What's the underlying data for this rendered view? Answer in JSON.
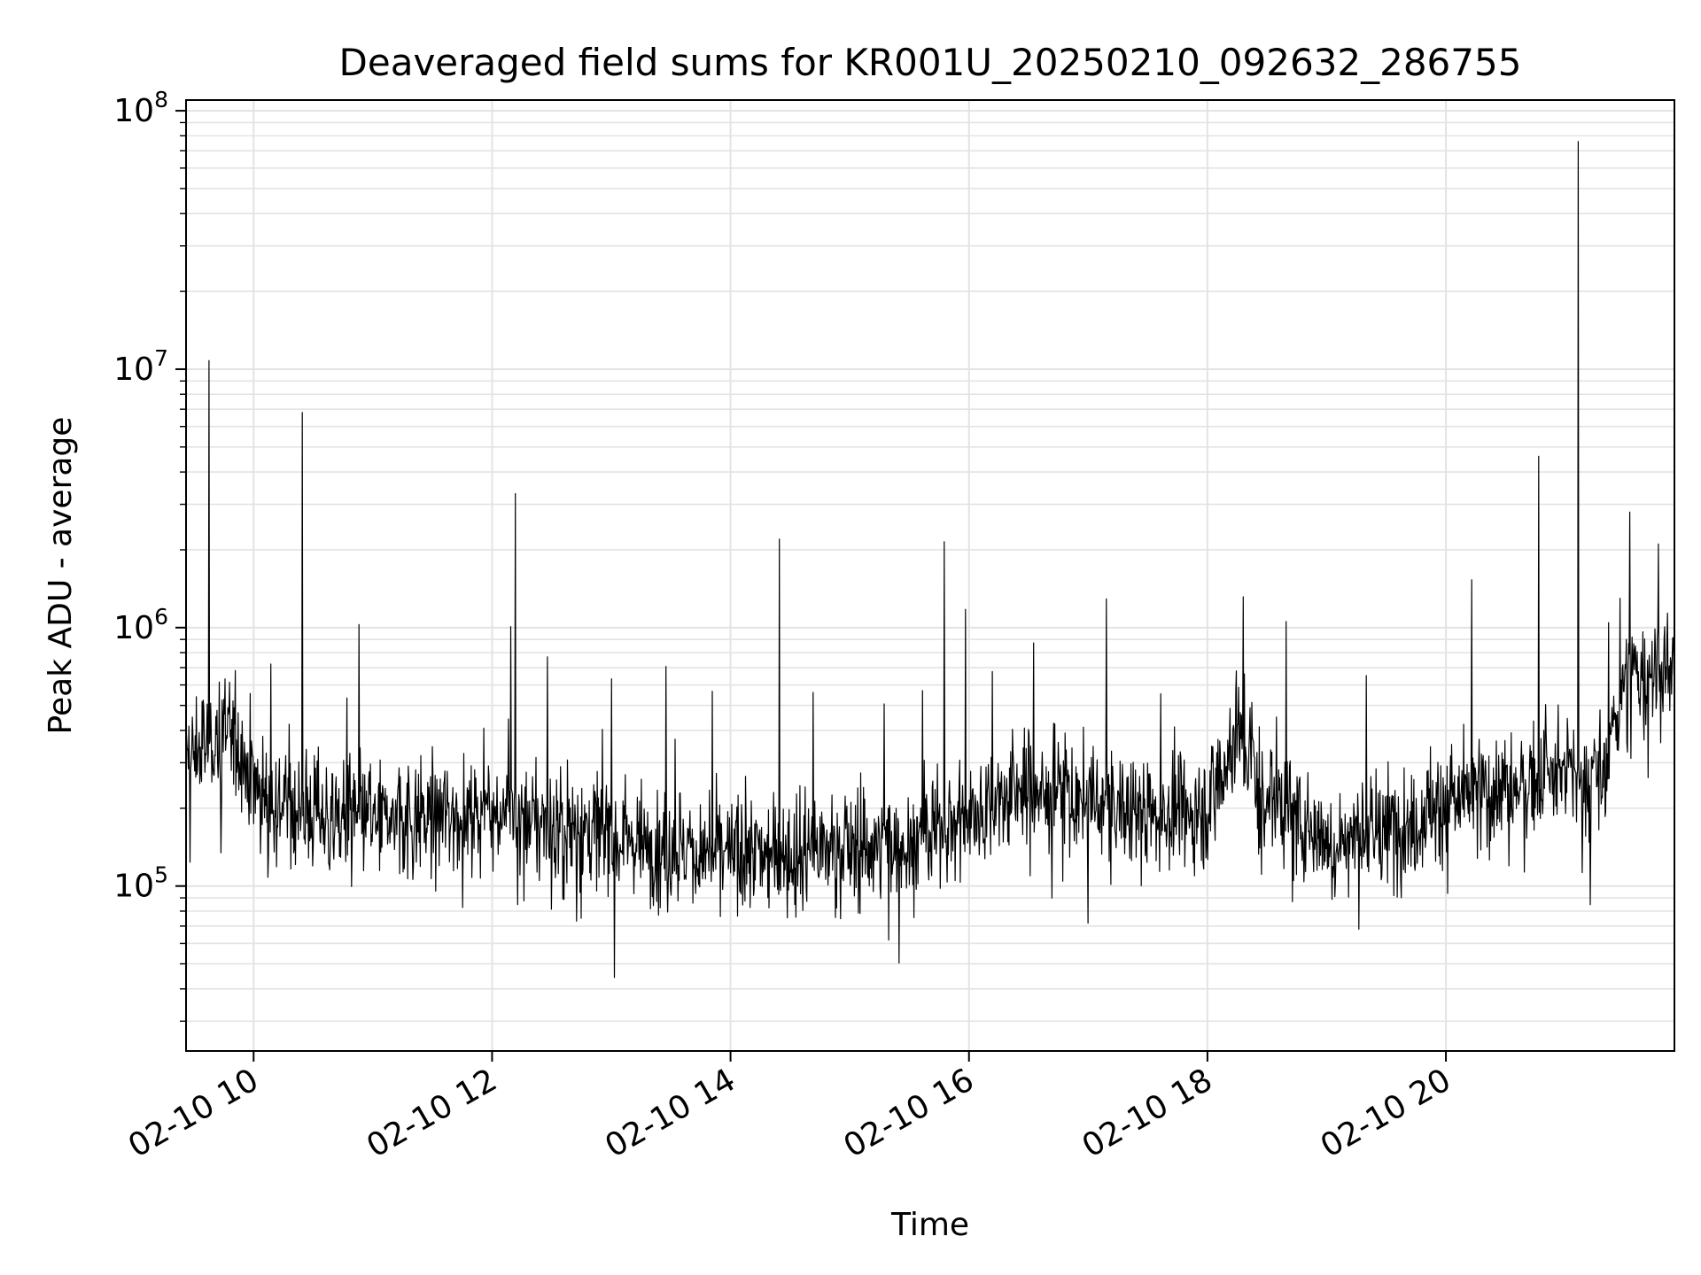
{
  "chart_data": {
    "type": "line",
    "title": "Deaveraged field sums for KR001U_20250210_092632_286755",
    "xlabel": "Time",
    "ylabel": "Peak ADU - average",
    "yscale": "log",
    "ylim": [
      23000,
      110000000
    ],
    "xlim": [
      "2025-02-10 09:26",
      "2025-02-10 21:55"
    ],
    "x_ticks": [
      {
        "value": "2025-02-10 10:00",
        "label": "02-10 10"
      },
      {
        "value": "2025-02-10 12:00",
        "label": "02-10 12"
      },
      {
        "value": "2025-02-10 14:00",
        "label": "02-10 14"
      },
      {
        "value": "2025-02-10 16:00",
        "label": "02-10 16"
      },
      {
        "value": "2025-02-10 18:00",
        "label": "02-10 18"
      },
      {
        "value": "2025-02-10 20:00",
        "label": "02-10 20"
      }
    ],
    "y_ticks": [
      {
        "value": 100000,
        "label_base": "10",
        "label_exp": "5"
      },
      {
        "value": 1000000,
        "label_base": "10",
        "label_exp": "6"
      },
      {
        "value": 10000000,
        "label_base": "10",
        "label_exp": "7"
      },
      {
        "value": 100000000,
        "label_base": "10",
        "label_exp": "8"
      }
    ],
    "grid": true,
    "line_color": "#000000",
    "grid_color": "#e3e3e3",
    "series": [
      {
        "values_description_free": true,
        "x": [
          "2025-02-10 09:26",
          "2025-02-10 09:40",
          "2025-02-10 09:50",
          "2025-02-10 10:00",
          "2025-02-10 10:15",
          "2025-02-10 10:30",
          "2025-02-10 11:00",
          "2025-02-10 11:30",
          "2025-02-10 12:00",
          "2025-02-10 12:30",
          "2025-02-10 13:00",
          "2025-02-10 13:30",
          "2025-02-10 14:00",
          "2025-02-10 14:30",
          "2025-02-10 15:00",
          "2025-02-10 15:30",
          "2025-02-10 16:00",
          "2025-02-10 16:30",
          "2025-02-10 17:00",
          "2025-02-10 17:30",
          "2025-02-10 18:00",
          "2025-02-10 18:15",
          "2025-02-10 18:30",
          "2025-02-10 19:00",
          "2025-02-10 19:30",
          "2025-02-10 20:00",
          "2025-02-10 20:30",
          "2025-02-10 21:00",
          "2025-02-10 21:20",
          "2025-02-10 21:30",
          "2025-02-10 21:55"
        ],
        "y": [
          300000,
          380000,
          400000,
          250000,
          210000,
          190000,
          180000,
          185000,
          200000,
          170000,
          160000,
          140000,
          130000,
          135000,
          140000,
          150000,
          190000,
          240000,
          210000,
          190000,
          200000,
          400000,
          230000,
          150000,
          160000,
          210000,
          240000,
          270000,
          260000,
          650000,
          650000
        ]
      }
    ],
    "spikes": [
      {
        "x": "2025-02-10 09:38",
        "y": 10800000
      },
      {
        "x": "2025-02-10 10:25",
        "y": 6800000
      },
      {
        "x": "2025-02-10 12:12",
        "y": 3300000
      },
      {
        "x": "2025-02-10 14:25",
        "y": 2200000
      },
      {
        "x": "2025-02-10 15:48",
        "y": 2150000
      },
      {
        "x": "2025-02-10 20:47",
        "y": 4600000
      },
      {
        "x": "2025-02-10 21:07",
        "y": 76000000
      },
      {
        "x": "2025-02-10 21:33",
        "y": 2800000
      }
    ]
  }
}
